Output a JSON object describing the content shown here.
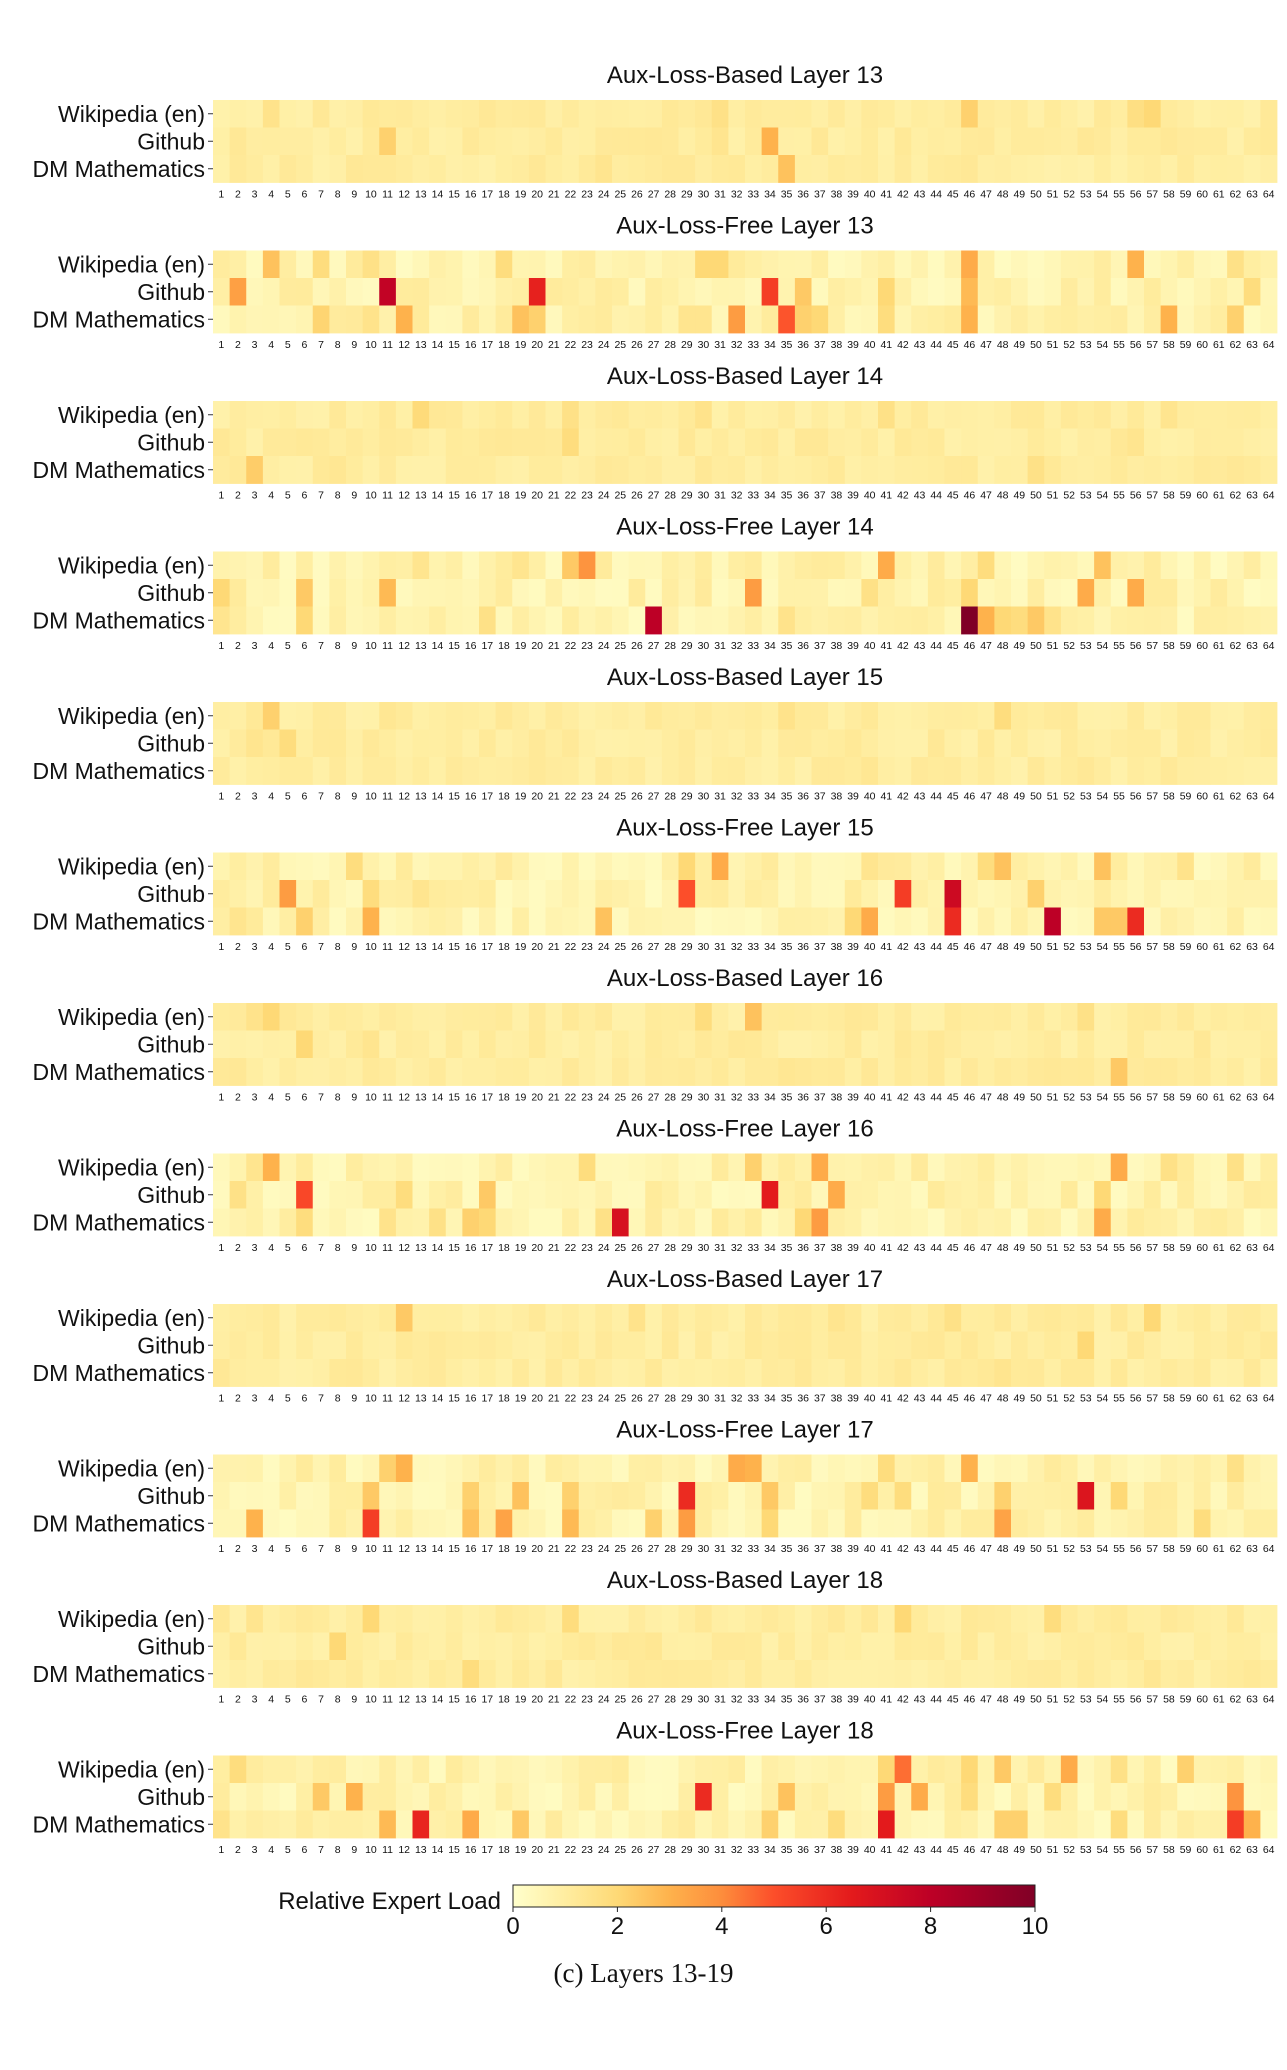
{
  "caption": "(c) Layers 13-19",
  "chart_data": {
    "type": "heatmap",
    "row_labels": [
      "Wikipedia (en)",
      "Github",
      "DM Mathematics"
    ],
    "x_ticks": [
      "1",
      "2",
      "3",
      "4",
      "5",
      "6",
      "7",
      "8",
      "9",
      "10",
      "11",
      "12",
      "13",
      "14",
      "15",
      "16",
      "17",
      "18",
      "19",
      "20",
      "21",
      "22",
      "23",
      "24",
      "25",
      "26",
      "27",
      "28",
      "29",
      "30",
      "31",
      "32",
      "33",
      "34",
      "35",
      "36",
      "37",
      "38",
      "39",
      "40",
      "41",
      "42",
      "43",
      "44",
      "45",
      "46",
      "47",
      "48",
      "49",
      "50",
      "51",
      "52",
      "53",
      "54",
      "55",
      "56",
      "57",
      "58",
      "59",
      "60",
      "61",
      "62",
      "63",
      "64"
    ],
    "colorbar": {
      "label": "Relative Expert Load",
      "min": 0,
      "max": 10,
      "ticks": [
        0,
        2,
        4,
        6,
        8,
        10
      ],
      "colormap": "YlOrRd"
    },
    "base_level": {
      "aux_loss_based": 0.9,
      "aux_loss_free": 0.5
    },
    "panels": [
      {
        "title": "Aux-Loss-Based Layer 13",
        "highlights": [
          [
            1,
            11,
            2.2
          ],
          [
            1,
            34,
            3.0
          ],
          [
            2,
            35,
            2.6
          ],
          [
            0,
            46,
            2.2
          ],
          [
            0,
            57,
            2.0
          ],
          [
            0,
            56,
            1.7
          ],
          [
            0,
            31,
            1.6
          ],
          [
            1,
            31,
            1.4
          ],
          [
            0,
            4,
            1.5
          ],
          [
            2,
            24,
            1.4
          ]
        ]
      },
      {
        "title": "Aux-Loss-Free Layer 13",
        "highlights": [
          [
            0,
            4,
            2.6
          ],
          [
            0,
            7,
            1.8
          ],
          [
            0,
            10,
            1.6
          ],
          [
            0,
            18,
            1.8
          ],
          [
            0,
            30,
            2.0
          ],
          [
            0,
            31,
            2.0
          ],
          [
            0,
            46,
            3.2
          ],
          [
            0,
            56,
            3.0
          ],
          [
            0,
            62,
            1.6
          ],
          [
            1,
            2,
            3.5
          ],
          [
            1,
            11,
            7.8
          ],
          [
            1,
            20,
            6.3
          ],
          [
            1,
            34,
            5.5
          ],
          [
            1,
            36,
            2.4
          ],
          [
            1,
            41,
            2.0
          ],
          [
            1,
            46,
            2.8
          ],
          [
            1,
            63,
            1.8
          ],
          [
            2,
            7,
            2.1
          ],
          [
            2,
            10,
            1.5
          ],
          [
            2,
            12,
            3.0
          ],
          [
            2,
            19,
            2.6
          ],
          [
            2,
            20,
            2.2
          ],
          [
            2,
            32,
            3.6
          ],
          [
            2,
            35,
            4.9
          ],
          [
            2,
            36,
            2.2
          ],
          [
            2,
            37,
            2.0
          ],
          [
            2,
            41,
            1.8
          ],
          [
            2,
            46,
            3.0
          ],
          [
            2,
            58,
            3.0
          ],
          [
            2,
            62,
            2.2
          ],
          [
            2,
            29,
            1.4
          ],
          [
            2,
            30,
            1.4
          ]
        ]
      },
      {
        "title": "Aux-Loss-Based Layer 14",
        "highlights": [
          [
            0,
            13,
            1.9
          ],
          [
            1,
            22,
            1.8
          ],
          [
            0,
            22,
            1.6
          ],
          [
            2,
            3,
            2.3
          ],
          [
            0,
            41,
            1.6
          ],
          [
            0,
            30,
            1.5
          ],
          [
            2,
            50,
            1.6
          ],
          [
            0,
            58,
            1.4
          ],
          [
            1,
            56,
            1.4
          ],
          [
            2,
            8,
            1.3
          ]
        ]
      },
      {
        "title": "Aux-Loss-Free Layer 14",
        "highlights": [
          [
            0,
            23,
            3.8
          ],
          [
            0,
            22,
            2.4
          ],
          [
            0,
            41,
            3.2
          ],
          [
            0,
            54,
            2.6
          ],
          [
            0,
            47,
            1.8
          ],
          [
            0,
            13,
            1.4
          ],
          [
            0,
            19,
            1.4
          ],
          [
            1,
            1,
            2.0
          ],
          [
            1,
            6,
            2.4
          ],
          [
            1,
            11,
            2.8
          ],
          [
            1,
            33,
            3.6
          ],
          [
            1,
            46,
            2.0
          ],
          [
            1,
            53,
            3.2
          ],
          [
            1,
            56,
            3.2
          ],
          [
            1,
            40,
            1.6
          ],
          [
            2,
            27,
            8.0
          ],
          [
            2,
            46,
            10.0
          ],
          [
            2,
            6,
            2.0
          ],
          [
            2,
            17,
            1.6
          ],
          [
            2,
            47,
            3.0
          ],
          [
            2,
            50,
            2.4
          ],
          [
            2,
            48,
            2.0
          ],
          [
            2,
            49,
            1.8
          ],
          [
            2,
            51,
            1.5
          ],
          [
            2,
            35,
            1.5
          ],
          [
            2,
            1,
            1.4
          ]
        ]
      },
      {
        "title": "Aux-Loss-Based Layer 15",
        "highlights": [
          [
            0,
            4,
            2.2
          ],
          [
            1,
            5,
            1.8
          ],
          [
            0,
            48,
            1.8
          ],
          [
            0,
            35,
            1.5
          ],
          [
            1,
            3,
            1.4
          ],
          [
            2,
            40,
            1.3
          ],
          [
            0,
            11,
            1.3
          ]
        ]
      },
      {
        "title": "Aux-Loss-Free Layer 15",
        "highlights": [
          [
            0,
            31,
            3.2
          ],
          [
            0,
            48,
            2.6
          ],
          [
            0,
            47,
            1.8
          ],
          [
            0,
            54,
            2.6
          ],
          [
            0,
            9,
            1.8
          ],
          [
            0,
            29,
            2.0
          ],
          [
            0,
            59,
            1.5
          ],
          [
            0,
            40,
            1.4
          ],
          [
            1,
            5,
            3.6
          ],
          [
            1,
            29,
            5.0
          ],
          [
            1,
            42,
            5.5
          ],
          [
            1,
            45,
            7.4
          ],
          [
            1,
            50,
            2.2
          ],
          [
            1,
            10,
            1.8
          ],
          [
            1,
            13,
            1.4
          ],
          [
            2,
            6,
            2.2
          ],
          [
            2,
            10,
            3.0
          ],
          [
            2,
            24,
            2.6
          ],
          [
            2,
            40,
            3.2
          ],
          [
            2,
            45,
            6.0
          ],
          [
            2,
            51,
            8.0
          ],
          [
            2,
            54,
            2.4
          ],
          [
            2,
            55,
            2.4
          ],
          [
            2,
            56,
            6.0
          ],
          [
            2,
            39,
            2.0
          ],
          [
            2,
            2,
            1.4
          ]
        ]
      },
      {
        "title": "Aux-Loss-Based Layer 16",
        "highlights": [
          [
            0,
            4,
            2.0
          ],
          [
            0,
            3,
            1.5
          ],
          [
            0,
            30,
            1.8
          ],
          [
            0,
            33,
            2.6
          ],
          [
            1,
            6,
            2.0
          ],
          [
            2,
            55,
            2.4
          ],
          [
            0,
            53,
            1.6
          ],
          [
            1,
            10,
            1.4
          ],
          [
            2,
            35,
            1.3
          ]
        ]
      },
      {
        "title": "Aux-Loss-Free Layer 16",
        "highlights": [
          [
            0,
            4,
            3.0
          ],
          [
            0,
            33,
            2.2
          ],
          [
            0,
            37,
            3.2
          ],
          [
            0,
            55,
            3.2
          ],
          [
            0,
            23,
            1.8
          ],
          [
            0,
            62,
            1.6
          ],
          [
            0,
            58,
            1.6
          ],
          [
            0,
            3,
            1.4
          ],
          [
            1,
            6,
            5.2
          ],
          [
            1,
            34,
            6.5
          ],
          [
            1,
            38,
            3.2
          ],
          [
            1,
            17,
            2.4
          ],
          [
            1,
            12,
            1.8
          ],
          [
            1,
            2,
            1.6
          ],
          [
            1,
            54,
            2.0
          ],
          [
            2,
            25,
            7.0
          ],
          [
            2,
            37,
            3.6
          ],
          [
            2,
            54,
            3.2
          ],
          [
            2,
            16,
            2.2
          ],
          [
            2,
            17,
            2.0
          ],
          [
            2,
            6,
            1.8
          ],
          [
            2,
            14,
            1.6
          ],
          [
            2,
            36,
            2.0
          ],
          [
            2,
            24,
            1.6
          ],
          [
            2,
            11,
            1.5
          ]
        ]
      },
      {
        "title": "Aux-Loss-Based Layer 17",
        "highlights": [
          [
            0,
            12,
            2.4
          ],
          [
            0,
            57,
            2.0
          ],
          [
            1,
            53,
            2.0
          ],
          [
            0,
            45,
            1.6
          ],
          [
            0,
            26,
            1.5
          ],
          [
            2,
            48,
            1.4
          ],
          [
            0,
            38,
            1.4
          ]
        ]
      },
      {
        "title": "Aux-Loss-Free Layer 17",
        "highlights": [
          [
            0,
            12,
            3.0
          ],
          [
            0,
            11,
            2.2
          ],
          [
            0,
            32,
            3.2
          ],
          [
            0,
            33,
            3.0
          ],
          [
            0,
            46,
            3.0
          ],
          [
            0,
            41,
            1.8
          ],
          [
            0,
            62,
            1.6
          ],
          [
            1,
            29,
            6.0
          ],
          [
            1,
            53,
            6.8
          ],
          [
            1,
            10,
            2.4
          ],
          [
            1,
            16,
            2.2
          ],
          [
            1,
            19,
            2.6
          ],
          [
            1,
            22,
            2.2
          ],
          [
            1,
            34,
            2.4
          ],
          [
            1,
            40,
            1.8
          ],
          [
            1,
            42,
            1.8
          ],
          [
            1,
            48,
            2.2
          ],
          [
            1,
            55,
            2.0
          ],
          [
            2,
            3,
            3.0
          ],
          [
            2,
            10,
            5.5
          ],
          [
            2,
            16,
            2.6
          ],
          [
            2,
            18,
            3.4
          ],
          [
            2,
            22,
            2.8
          ],
          [
            2,
            27,
            2.2
          ],
          [
            2,
            29,
            3.6
          ],
          [
            2,
            34,
            2.0
          ],
          [
            2,
            48,
            3.4
          ],
          [
            2,
            60,
            1.8
          ]
        ]
      },
      {
        "title": "Aux-Loss-Based Layer 18",
        "highlights": [
          [
            0,
            10,
            2.0
          ],
          [
            0,
            22,
            1.8
          ],
          [
            0,
            42,
            2.0
          ],
          [
            0,
            51,
            1.8
          ],
          [
            1,
            8,
            2.0
          ],
          [
            2,
            16,
            1.8
          ],
          [
            0,
            3,
            1.4
          ],
          [
            1,
            27,
            1.3
          ],
          [
            2,
            57,
            1.3
          ]
        ]
      },
      {
        "title": "Aux-Loss-Free Layer 18",
        "highlights": [
          [
            0,
            42,
            4.5
          ],
          [
            0,
            52,
            3.2
          ],
          [
            0,
            48,
            2.4
          ],
          [
            0,
            59,
            2.2
          ],
          [
            0,
            55,
            1.6
          ],
          [
            0,
            2,
            1.8
          ],
          [
            0,
            41,
            2.0
          ],
          [
            0,
            46,
            2.0
          ],
          [
            1,
            30,
            6.0
          ],
          [
            1,
            41,
            3.6
          ],
          [
            1,
            43,
            3.2
          ],
          [
            1,
            62,
            3.8
          ],
          [
            1,
            7,
            2.4
          ],
          [
            1,
            9,
            3.0
          ],
          [
            1,
            35,
            2.6
          ],
          [
            1,
            46,
            1.8
          ],
          [
            1,
            51,
            1.8
          ],
          [
            2,
            13,
            6.2
          ],
          [
            2,
            41,
            6.5
          ],
          [
            2,
            62,
            5.5
          ],
          [
            2,
            63,
            3.0
          ],
          [
            2,
            11,
            2.8
          ],
          [
            2,
            16,
            3.2
          ],
          [
            2,
            19,
            2.4
          ],
          [
            2,
            34,
            2.2
          ],
          [
            2,
            48,
            2.2
          ],
          [
            2,
            49,
            2.2
          ],
          [
            2,
            38,
            1.8
          ],
          [
            2,
            55,
            1.8
          ],
          [
            2,
            1,
            1.5
          ]
        ]
      }
    ]
  }
}
